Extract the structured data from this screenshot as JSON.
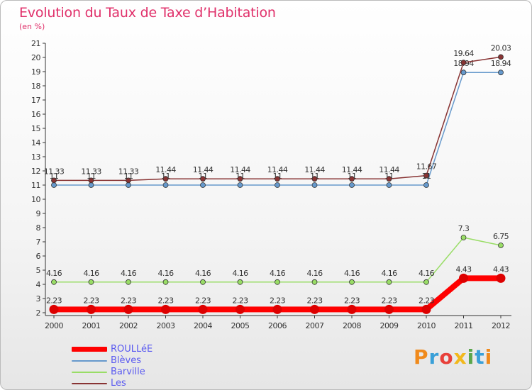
{
  "title": "Evolution du Taux de Taxe d’Habitation",
  "subtitle": "(en %)",
  "brand": {
    "text": "Proxiti",
    "colors": [
      "#f08a1c",
      "#3aa0d8",
      "#e8403a",
      "#f2b81c",
      "#5aa64a",
      "#3aa0d8",
      "#f08a1c"
    ]
  },
  "chart_data": {
    "type": "line",
    "x": [
      "2000",
      "2001",
      "2002",
      "2003",
      "2004",
      "2005",
      "2006",
      "2007",
      "2008",
      "2009",
      "2010",
      "2011",
      "2012"
    ],
    "ylim": [
      2,
      21
    ],
    "yticks": [
      "2",
      "3",
      "4",
      "5",
      "6",
      "7",
      "8",
      "9",
      "10",
      "11",
      "12",
      "13",
      "14",
      "15",
      "16",
      "17",
      "18",
      "19",
      "20",
      "21"
    ],
    "grid": false,
    "series": [
      {
        "name": "ROULLéE",
        "color": "#ff0000",
        "values": [
          2.23,
          2.23,
          2.23,
          2.23,
          2.23,
          2.23,
          2.23,
          2.23,
          2.23,
          2.23,
          2.23,
          4.43,
          4.43
        ],
        "labels": [
          "2.23",
          "2.23",
          "2.23",
          "2.23",
          "2.23",
          "2.23",
          "2.23",
          "2.23",
          "2.23",
          "2.23",
          "2.23",
          "4.43",
          "4.43"
        ]
      },
      {
        "name": "Blèves",
        "color": "#6699cc",
        "values": [
          11,
          11,
          11,
          11,
          11,
          11,
          11,
          11,
          11,
          11,
          11,
          18.94,
          18.94
        ],
        "labels": [
          "11",
          "11",
          "11",
          "11",
          "11",
          "11",
          "11",
          "11",
          "11",
          "11",
          "11",
          "18.94",
          "18.94"
        ]
      },
      {
        "name": "Barville",
        "color": "#99dd66",
        "values": [
          4.16,
          4.16,
          4.16,
          4.16,
          4.16,
          4.16,
          4.16,
          4.16,
          4.16,
          4.16,
          4.16,
          7.3,
          6.75
        ],
        "labels": [
          "4.16",
          "4.16",
          "4.16",
          "4.16",
          "4.16",
          "4.16",
          "4.16",
          "4.16",
          "4.16",
          "4.16",
          "4.16",
          "7.3",
          "6.75"
        ]
      },
      {
        "name": "Les Aulneaux",
        "color": "#883333",
        "values": [
          11.33,
          11.33,
          11.33,
          11.44,
          11.44,
          11.44,
          11.44,
          11.44,
          11.44,
          11.44,
          11.67,
          19.64,
          20.03
        ],
        "labels": [
          "11.33",
          "11.33",
          "11.33",
          "11.44",
          "11.44",
          "11.44",
          "11.44",
          "11.44",
          "11.44",
          "11.44",
          "11.67",
          "19.64",
          "20.03"
        ]
      }
    ]
  }
}
